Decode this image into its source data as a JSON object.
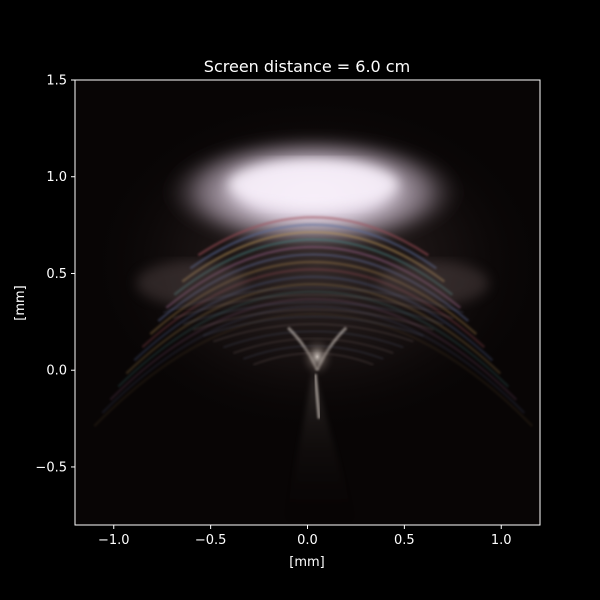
{
  "chart_data": {
    "type": "heatmap",
    "title": "Screen distance = 6.0 cm",
    "xlabel": "[mm]",
    "ylabel": "[mm]",
    "xlim": [
      -1.2,
      1.2
    ],
    "ylim": [
      -0.8,
      1.5
    ],
    "xticks": [
      -1.0,
      -0.5,
      0.0,
      0.5,
      1.0
    ],
    "xtick_labels": [
      "−1.0",
      "−0.5",
      "0.0",
      "0.5",
      "1.0"
    ],
    "yticks": [
      -0.5,
      0.0,
      0.5,
      1.0,
      1.5
    ],
    "ytick_labels": [
      "−0.5",
      "0.0",
      "0.5",
      "1.0",
      "1.5"
    ],
    "grid": false,
    "background_color": "#000000",
    "foreground_color": "#ffffff",
    "image_description_colors": {
      "bright_cap": "#f2e6f4",
      "fringe_warm": "#b48c50",
      "fringe_cool": "#5a6ea0",
      "fringe_red": "#a0505a"
    }
  }
}
